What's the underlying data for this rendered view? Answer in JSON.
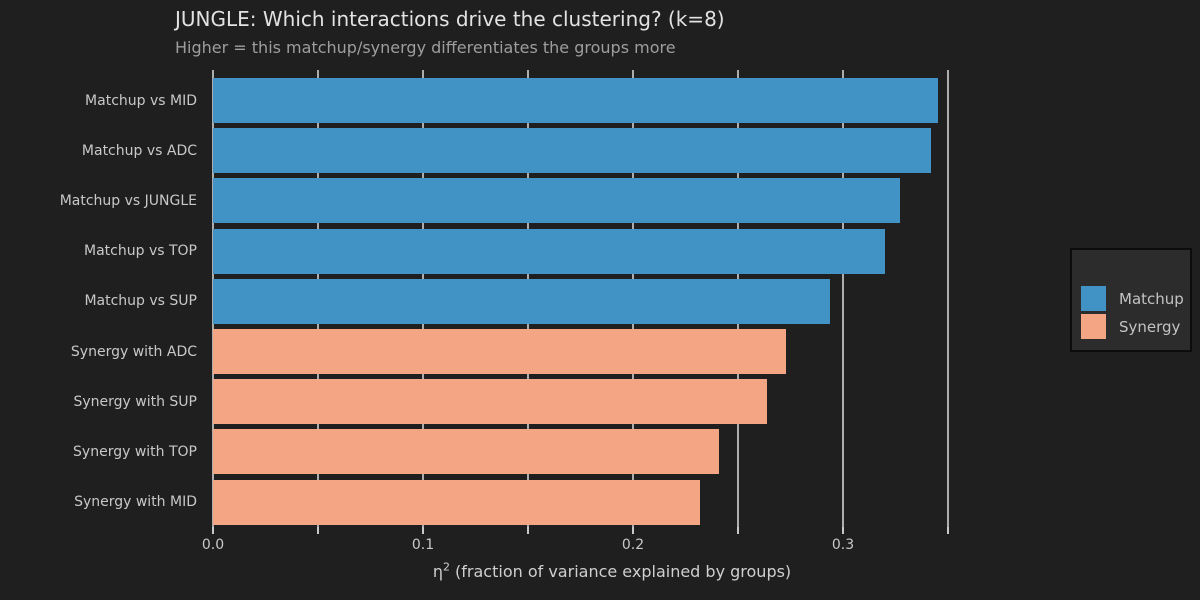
{
  "page": {
    "background": "#1f1f1f"
  },
  "header": {
    "title": "JUNGLE: Which interactions drive the clustering? (k=8)",
    "subtitle": "Higher = this matchup/synergy differentiates the groups more"
  },
  "chart_data": {
    "type": "bar",
    "orientation": "horizontal",
    "title": "JUNGLE: Which interactions drive the clustering? (k=8)",
    "subtitle": "Higher = this matchup/synergy differentiates the groups more",
    "xlabel": {
      "base": "η",
      "sup": "2",
      "rest": " (fraction of variance explained by groups)"
    },
    "xlim": [
      0,
      0.38
    ],
    "grid": true,
    "legend_position": "center-right",
    "groups": [
      {
        "name": "Matchup",
        "color": "#4293c5"
      },
      {
        "name": "Synergy",
        "color": "#f3a584"
      }
    ],
    "bars": [
      {
        "label": "Matchup vs MID",
        "group": "Matchup",
        "value": 0.345
      },
      {
        "label": "Matchup vs ADC",
        "group": "Matchup",
        "value": 0.342
      },
      {
        "label": "Matchup vs JUNGLE",
        "group": "Matchup",
        "value": 0.327
      },
      {
        "label": "Matchup vs TOP",
        "group": "Matchup",
        "value": 0.32
      },
      {
        "label": "Matchup vs SUP",
        "group": "Matchup",
        "value": 0.294
      },
      {
        "label": "Synergy with ADC",
        "group": "Synergy",
        "value": 0.273
      },
      {
        "label": "Synergy with SUP",
        "group": "Synergy",
        "value": 0.264
      },
      {
        "label": "Synergy with TOP",
        "group": "Synergy",
        "value": 0.241
      },
      {
        "label": "Synergy with MID",
        "group": "Synergy",
        "value": 0.232
      }
    ],
    "xticks": [
      {
        "v": 0.0,
        "label": "0.0"
      },
      {
        "v": 0.05,
        "label": ""
      },
      {
        "v": 0.1,
        "label": "0.1"
      },
      {
        "v": 0.15,
        "label": ""
      },
      {
        "v": 0.2,
        "label": "0.2"
      },
      {
        "v": 0.25,
        "label": ""
      },
      {
        "v": 0.3,
        "label": "0.3"
      },
      {
        "v": 0.35,
        "label": ""
      }
    ]
  },
  "colors": {
    "grid": "#adadad",
    "tick": "#c8c8c8",
    "axis_text": "#c8c8c8",
    "title_text": "#e2e2e2",
    "subtitle_text": "#9e9e9e",
    "legend_bg": "#2c2c2c",
    "legend_border": "#0c0c0c"
  }
}
